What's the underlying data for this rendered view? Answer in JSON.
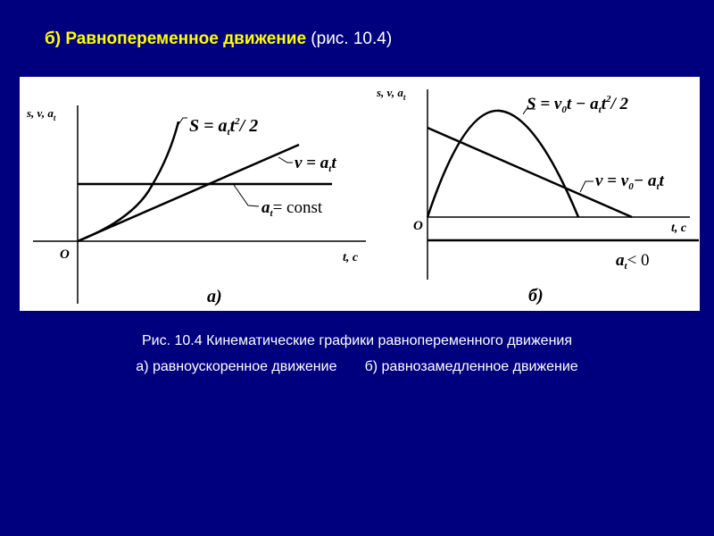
{
  "title": {
    "highlight": "б) Равнопеременное движение",
    "ref": "(рис. 10.4)"
  },
  "figure": {
    "panel_a": {
      "y_axis_label": "s, v, a",
      "y_axis_sub": "t",
      "origin": "O",
      "x_axis_label": "t, c",
      "s_label": "S = a",
      "s_label_rest": "t",
      "s_label_tail": "/ 2",
      "v_label": "v = a",
      "v_label_rest": "t",
      "a_label": "a",
      "a_label_rest": "= const",
      "panel_label": "а)"
    },
    "panel_b": {
      "y_axis_label": "s, v, a",
      "y_axis_sub": "t",
      "origin": "O",
      "x_axis_label": "t, c",
      "s_label": "S = v",
      "s_label_rest": "t − a",
      "s_label_tail": "t",
      "s_label_end": "/ 2",
      "v_label": "v = v",
      "v_label_rest": "− a",
      "v_label_tail": "t",
      "a_label": "a",
      "a_label_rest": "< 0",
      "panel_label": "б)"
    },
    "sub_t": "t",
    "sub_0": "0",
    "sup_2": "2"
  },
  "caption": {
    "line1": "Рис. 10.4 Кинематические графики равнопеременного движения",
    "line2": "а) равноускоренное движение       б) равнозамедленное движение"
  },
  "colors": {
    "background": "#00007f",
    "title_highlight": "#ffff00",
    "text": "#ffffff"
  }
}
